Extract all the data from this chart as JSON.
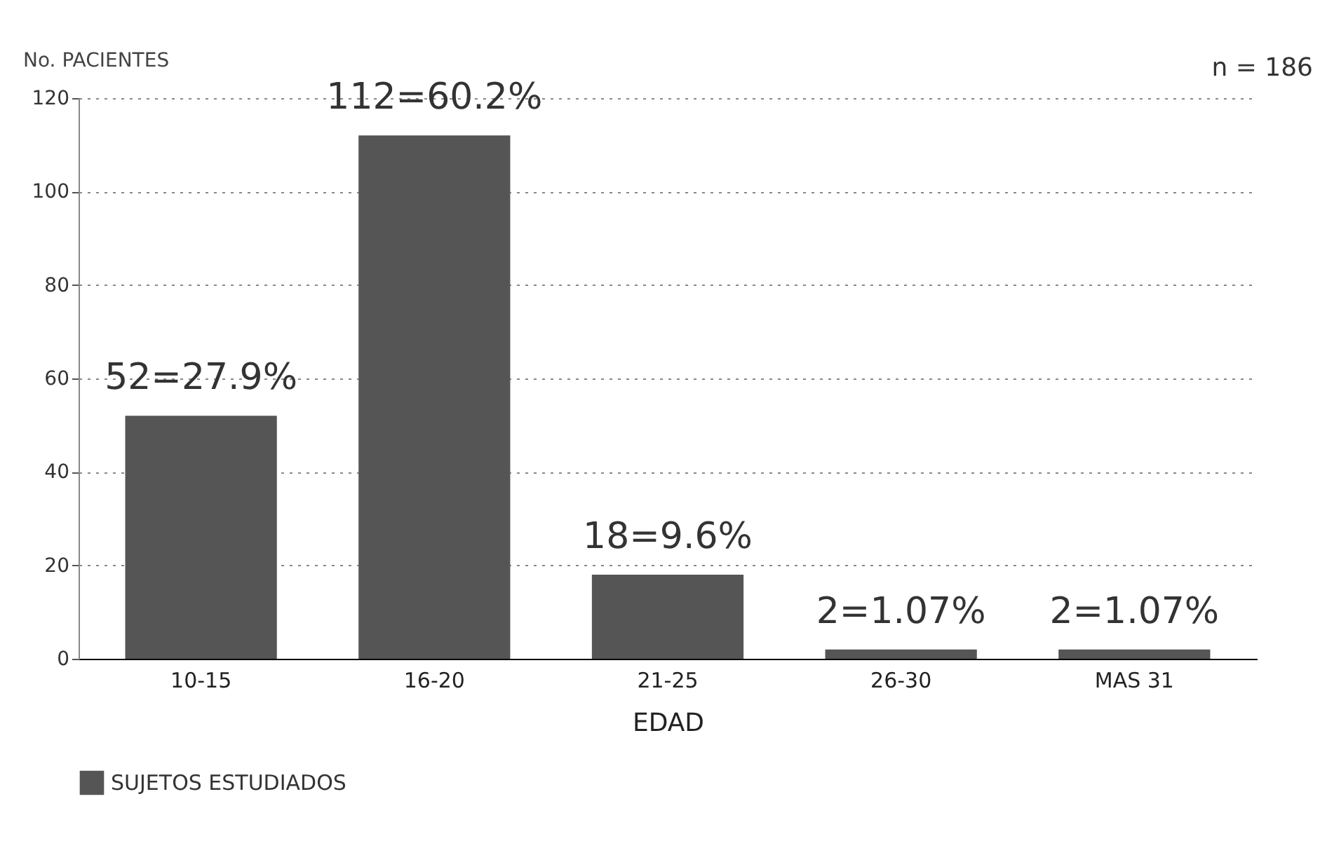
{
  "chart_data": {
    "type": "bar",
    "xlabel": "EDAD",
    "ylabel": "No. PACIENTES",
    "annotations": [
      "n = 186"
    ],
    "categories": [
      "10-15",
      "16-20",
      "21-25",
      "26-30",
      "MAS 31"
    ],
    "series": [
      {
        "name": "SUJETOS ESTUDIADOS",
        "color": "#555555",
        "values": [
          52,
          112,
          18,
          2,
          2
        ],
        "value_labels": [
          "52=27.9%",
          "112=60.2%",
          "18=9.6%",
          "2=1.07%",
          "2=1.07%"
        ]
      }
    ],
    "ylim": [
      0,
      120
    ],
    "yticks": [
      0,
      20,
      40,
      60,
      80,
      100,
      120
    ],
    "grid": "y",
    "legend": "bottom"
  }
}
